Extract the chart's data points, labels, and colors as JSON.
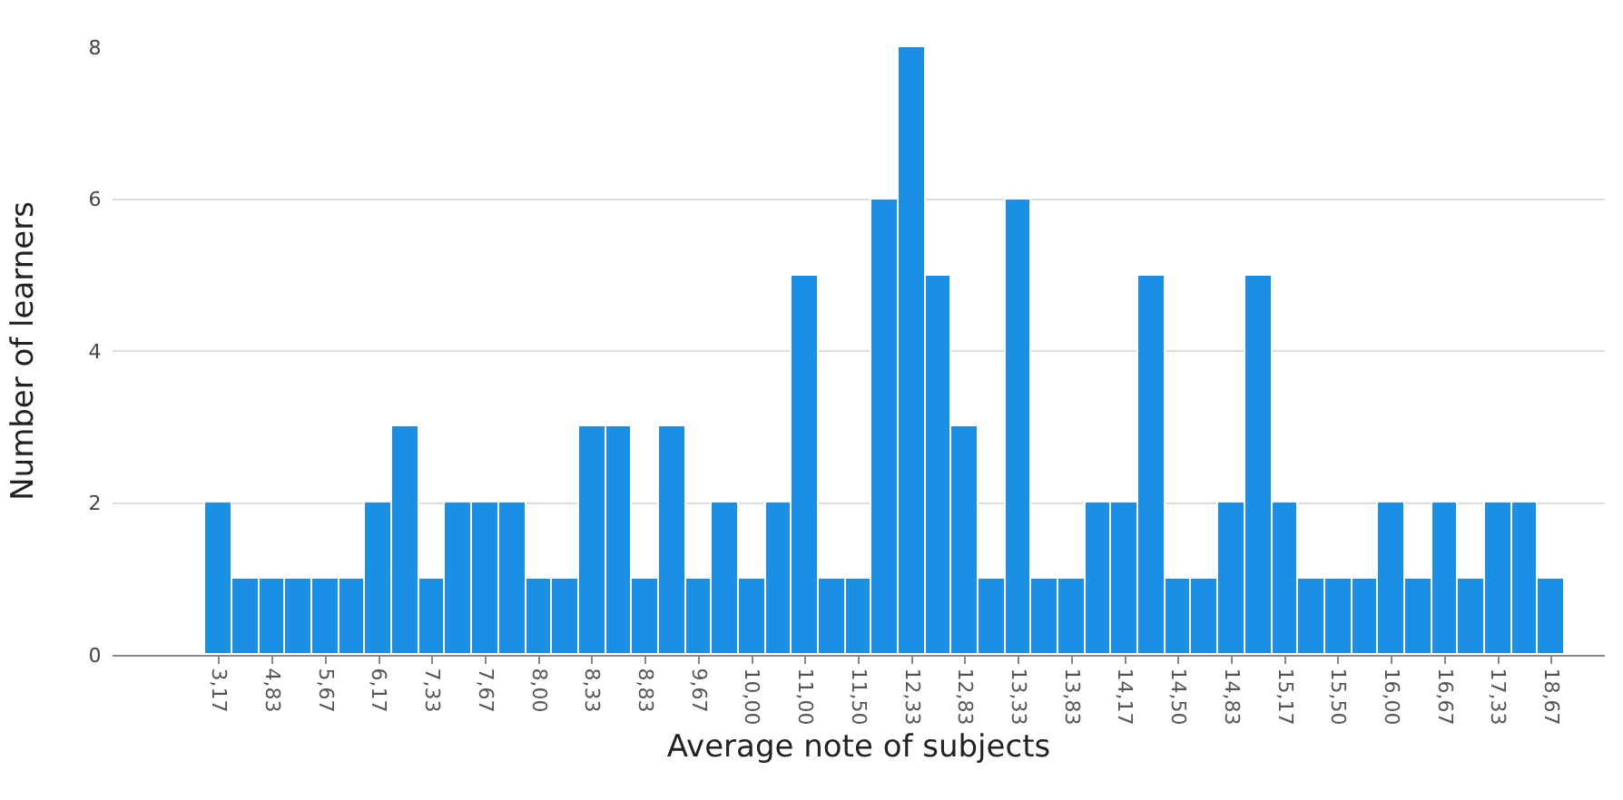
{
  "chart_data": {
    "type": "bar",
    "xlabel": "Average note of subjects",
    "ylabel": "Number of learners",
    "categories": [
      "3,17",
      null,
      "4,83",
      null,
      "5,67",
      null,
      "6,17",
      null,
      "7,33",
      null,
      "7,67",
      null,
      "8,00",
      null,
      "8,33",
      null,
      "8,83",
      null,
      "9,67",
      null,
      "10,00",
      null,
      "11,00",
      null,
      "11,50",
      null,
      "12,33",
      null,
      "12,83",
      null,
      "13,33",
      null,
      "13,83",
      null,
      "14,17",
      null,
      "14,50",
      null,
      "14,83",
      null,
      "15,17",
      null,
      "15,50",
      null,
      "16,00",
      null,
      "16,67",
      null,
      "17,33",
      null,
      "18,67"
    ],
    "values": [
      2,
      1,
      1,
      1,
      1,
      1,
      2,
      3,
      1,
      2,
      2,
      2,
      1,
      1,
      3,
      3,
      1,
      3,
      1,
      2,
      1,
      2,
      5,
      1,
      1,
      6,
      8,
      5,
      3,
      1,
      6,
      1,
      1,
      2,
      2,
      5,
      1,
      1,
      2,
      5,
      2,
      1,
      1,
      1,
      2,
      1,
      2,
      1,
      2,
      2,
      1
    ],
    "color": "#1a8fe3",
    "ylim": [
      0,
      8
    ],
    "yticks": [
      0,
      2,
      4,
      6,
      8
    ],
    "grid": "y"
  }
}
